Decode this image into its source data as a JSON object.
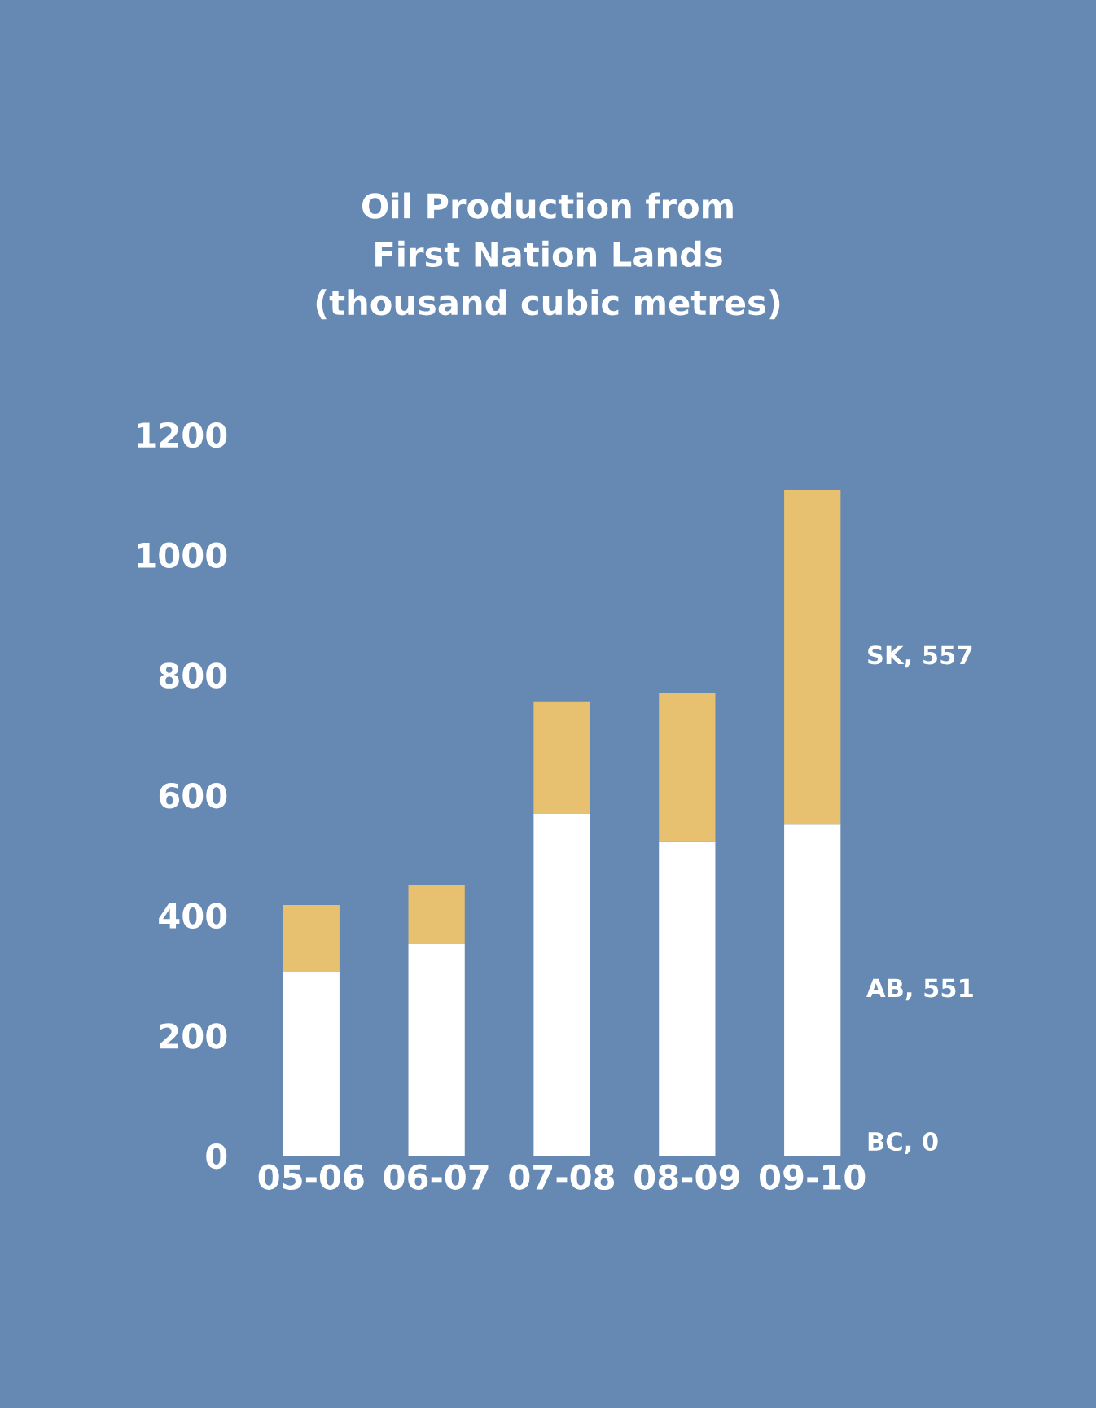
{
  "chart_data": {
    "type": "bar",
    "title": "Oil Production from\nFirst Nation Lands\n(thousand cubic metres)",
    "categories": [
      "05-06",
      "06-07",
      "07-08",
      "08-09",
      "09-10"
    ],
    "stacked": true,
    "series": [
      {
        "color": "#ffffff",
        "values": [
          306,
          352,
          569,
          523,
          551
        ]
      },
      {
        "color": "#e8c170",
        "values": [
          111,
          98,
          187,
          247,
          557
        ]
      }
    ],
    "ylim": [
      0,
      1200
    ],
    "yticks": [
      0,
      200,
      400,
      600,
      800,
      1000,
      1200
    ],
    "grid": false,
    "legend": false,
    "annotations": [
      "SK, 557",
      "AB, 551",
      "BC, 0"
    ]
  }
}
